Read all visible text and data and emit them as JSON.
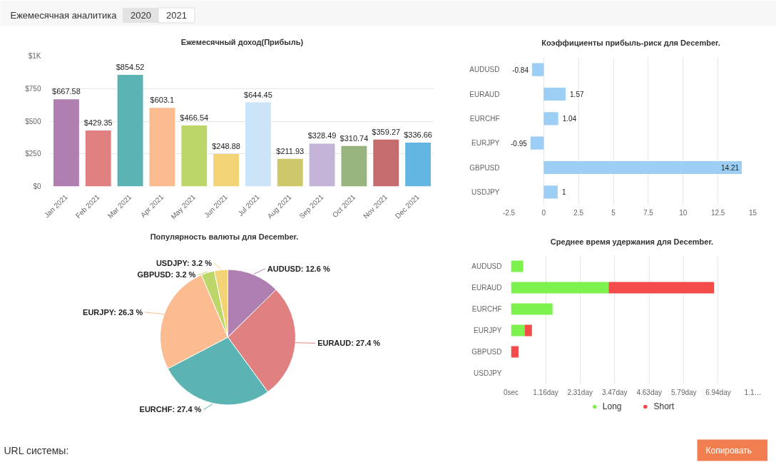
{
  "chart_data": [
    {
      "type": "other",
      "annotations": [
        "Ежемесячная аналитика",
        "2020",
        "2021"
      ]
    },
    {
      "type": "bar",
      "title": "Ежемесячный доход(Прибыль)",
      "categories": [
        "Jan 2021",
        "Feb 2021",
        "Mar 2021",
        "Apr 2021",
        "May 2021",
        "Jun 2021",
        "Jul 2021",
        "Aug 2021",
        "Sep 2021",
        "Oct 2021",
        "Nov 2021",
        "Dec 2021"
      ],
      "values": [
        667.58,
        429.35,
        854.52,
        603.1,
        466.54,
        248.88,
        644.45,
        211.93,
        328.49,
        310.74,
        359.27,
        336.66
      ],
      "colors": [
        "#b07fb2",
        "#e08080",
        "#5bb4b3",
        "#fcbc90",
        "#bdd66a",
        "#f2d476",
        "#cce4f8",
        "#cfc86a",
        "#c4b4d8",
        "#98b47e",
        "#c46c6e",
        "#64b6e2"
      ],
      "value_labels": [
        "$667.58",
        "$429.35",
        "$854.52",
        "$603.1",
        "$466.54",
        "$248.88",
        "$644.45",
        "$211.93",
        "$328.49",
        "$310.74",
        "$359.27",
        "$336.66"
      ],
      "ylim": [
        0,
        1000
      ],
      "yticks": [
        {
          "value": 0,
          "label": "$0"
        },
        {
          "value": 250,
          "label": "$250"
        },
        {
          "value": 500,
          "label": "$500"
        },
        {
          "value": 750,
          "label": "$750"
        },
        {
          "value": 1000,
          "label": "$1K"
        }
      ],
      "grid": "y"
    },
    {
      "type": "bar",
      "orientation": "horizontal",
      "title": "Коэффициенты прибыль-риск для December.",
      "categories": [
        "AUDUSD",
        "EURAUD",
        "EURCHF",
        "EURJPY",
        "GBPUSD",
        "USDJPY"
      ],
      "values": [
        -0.84,
        1.57,
        1.04,
        -0.95,
        14.21,
        1
      ],
      "color": "#9dcff5",
      "data_labels": true,
      "xlim": [
        -2.5,
        15
      ],
      "xticks": [
        -2.5,
        0,
        2.5,
        5,
        7.5,
        10,
        12.5,
        15
      ],
      "grid": "x"
    },
    {
      "type": "pie",
      "title": "Популярность валюты для December.",
      "values": [
        12.6,
        27.4,
        27.4,
        26.3,
        3.2,
        3.2
      ],
      "colors": [
        "#b07fb2",
        "#e08080",
        "#5bb4b3",
        "#fcbc90",
        "#bdd66a",
        "#f2d476"
      ],
      "value_labels": [
        "AUDUSD: 12.6 %",
        "EURAUD: 27.4 %",
        "EURCHF: 27.4 %",
        "EURJPY: 26.3 %",
        "GBPUSD: 3.2 %",
        "USDJPY: 3.2 %"
      ]
    },
    {
      "type": "bar",
      "orientation": "horizontal",
      "stacked": true,
      "title": "Среднее время удержания для December.",
      "categories": [
        "AUDUSD",
        "EURAUD",
        "EURCHF",
        "EURJPY",
        "GBPUSD",
        "USDJPY"
      ],
      "series": [
        {
          "name": "Long",
          "color": "#7df14c",
          "values": [
            0.41,
            3.27,
            1.39,
            0.46,
            null,
            null
          ]
        },
        {
          "name": "Short",
          "color": "#f34a4a",
          "values": [
            null,
            3.53,
            null,
            0.24,
            0.25,
            null
          ]
        }
      ],
      "xlim": [
        0,
        8.1
      ],
      "xticks": [
        {
          "value": 0,
          "label": "0sec"
        },
        {
          "value": 1.16,
          "label": "1.16day"
        },
        {
          "value": 2.31,
          "label": "2.31day"
        },
        {
          "value": 3.47,
          "label": "3.47day"
        },
        {
          "value": 4.63,
          "label": "4.63day"
        },
        {
          "value": 5.79,
          "label": "5.79day"
        },
        {
          "value": 6.94,
          "label": "6.94day"
        },
        {
          "value": 8.1,
          "label": "1.1…"
        }
      ],
      "grid": "x",
      "legend": "bottom"
    },
    {
      "type": "other",
      "annotations": [
        "URL системы:",
        "Копировать"
      ]
    }
  ]
}
